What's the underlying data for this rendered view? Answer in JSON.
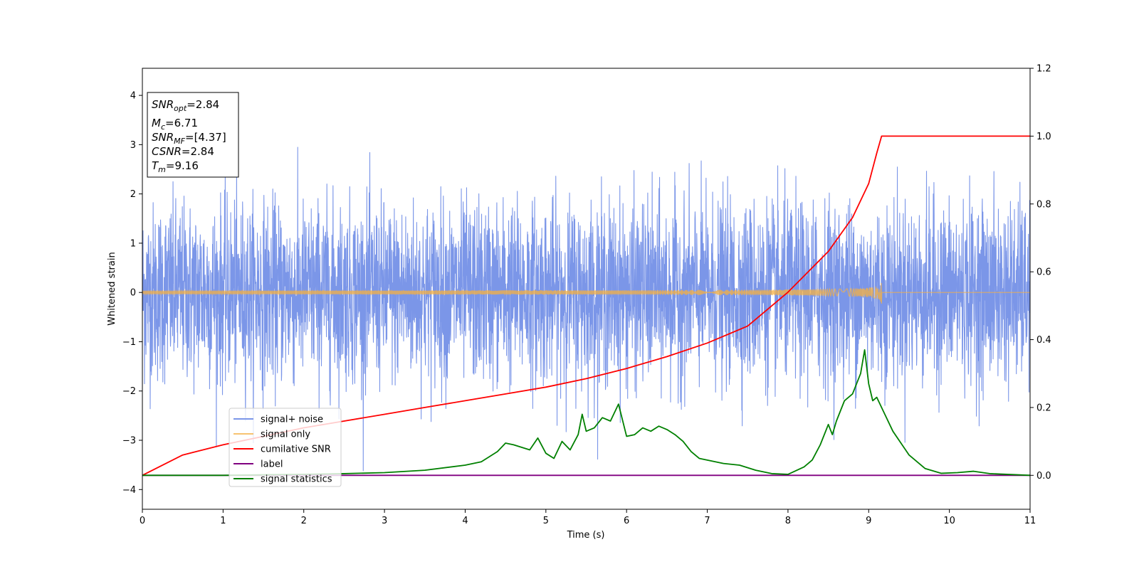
{
  "chart_data": {
    "type": "line",
    "xlabel": "Time (s)",
    "ylabel": "Whitened strain",
    "xlim": [
      0,
      11
    ],
    "ylim": [
      -4.4,
      4.55
    ],
    "ylim_right": [
      -0.1,
      1.2
    ],
    "x_ticks": [
      0,
      1,
      2,
      3,
      4,
      5,
      6,
      7,
      8,
      9,
      10,
      11
    ],
    "y_ticks": [
      -4,
      -3,
      -2,
      -1,
      0,
      1,
      2,
      3,
      4
    ],
    "y_tick_labels": [
      "−4",
      "−3",
      "−2",
      "−1",
      "0",
      "1",
      "2",
      "3",
      "4"
    ],
    "y_right_ticks": [
      0.0,
      0.2,
      0.4,
      0.6,
      0.8,
      1.0,
      1.2
    ],
    "y_right_tick_labels": [
      "0.0",
      "0.2",
      "0.4",
      "0.6",
      "0.8",
      "1.0",
      "1.2"
    ],
    "grid": false,
    "legend_position": "lower-left",
    "annotation": {
      "lines": [
        {
          "label": "SNR",
          "sub": "opt",
          "value": "=2.84"
        },
        {
          "label": "M",
          "sub": "c",
          "value": "=6.71"
        },
        {
          "label": "SNR",
          "sub": "MF",
          "value": "=[4.37]"
        },
        {
          "label": "CSNR",
          "sub": "",
          "value": "=2.84"
        },
        {
          "label": "T",
          "sub": "m",
          "value": "=9.16"
        }
      ]
    },
    "series": [
      {
        "name": "signal+ noise",
        "axis": "left",
        "color": "#7b96e8",
        "kind": "noise",
        "amplitude_std": 0.9,
        "x_range": [
          0,
          11
        ]
      },
      {
        "name": "signal only",
        "axis": "left",
        "color": "#f5b041",
        "kind": "chirp",
        "merger_time": 9.16,
        "peak_amplitude": 0.3,
        "x_range": [
          0,
          11
        ]
      },
      {
        "name": "cumilative SNR",
        "axis": "right",
        "color": "#ff0000",
        "x": [
          0,
          0.5,
          1,
          1.5,
          2,
          2.5,
          3,
          3.5,
          4,
          4.5,
          5,
          5.5,
          6,
          6.5,
          7,
          7.5,
          8,
          8.5,
          8.8,
          9.0,
          9.1,
          9.16,
          9.5,
          10,
          10.5,
          11
        ],
        "y": [
          0.0,
          0.06,
          0.09,
          0.115,
          0.14,
          0.16,
          0.18,
          0.2,
          0.22,
          0.24,
          0.26,
          0.285,
          0.315,
          0.35,
          0.39,
          0.44,
          0.54,
          0.66,
          0.76,
          0.86,
          0.95,
          1.0,
          1.0,
          1.0,
          1.0,
          1.0
        ]
      },
      {
        "name": "label",
        "axis": "right",
        "color": "#800080",
        "x": [
          0,
          11
        ],
        "y": [
          0.0,
          0.0
        ]
      },
      {
        "name": "signal statistics",
        "axis": "right",
        "color": "#008000",
        "x": [
          0,
          1,
          2,
          2.5,
          3,
          3.5,
          4,
          4.2,
          4.4,
          4.5,
          4.6,
          4.8,
          4.9,
          5.0,
          5.1,
          5.2,
          5.3,
          5.4,
          5.45,
          5.5,
          5.6,
          5.7,
          5.8,
          5.9,
          6.0,
          6.1,
          6.2,
          6.3,
          6.4,
          6.5,
          6.6,
          6.7,
          6.8,
          6.9,
          7.0,
          7.2,
          7.4,
          7.6,
          7.8,
          8.0,
          8.2,
          8.3,
          8.4,
          8.5,
          8.55,
          8.6,
          8.7,
          8.8,
          8.9,
          8.95,
          9.0,
          9.05,
          9.1,
          9.2,
          9.3,
          9.5,
          9.7,
          9.9,
          10.1,
          10.3,
          10.5,
          11
        ],
        "y": [
          0.0,
          0.0,
          0.003,
          0.005,
          0.008,
          0.015,
          0.03,
          0.04,
          0.07,
          0.095,
          0.09,
          0.075,
          0.11,
          0.065,
          0.05,
          0.1,
          0.075,
          0.12,
          0.18,
          0.13,
          0.14,
          0.17,
          0.16,
          0.21,
          0.115,
          0.12,
          0.14,
          0.13,
          0.145,
          0.135,
          0.12,
          0.1,
          0.07,
          0.05,
          0.045,
          0.035,
          0.03,
          0.015,
          0.005,
          0.003,
          0.025,
          0.045,
          0.09,
          0.15,
          0.12,
          0.16,
          0.22,
          0.24,
          0.3,
          0.37,
          0.27,
          0.22,
          0.23,
          0.18,
          0.13,
          0.06,
          0.02,
          0.006,
          0.008,
          0.012,
          0.005,
          0.0
        ]
      }
    ]
  }
}
